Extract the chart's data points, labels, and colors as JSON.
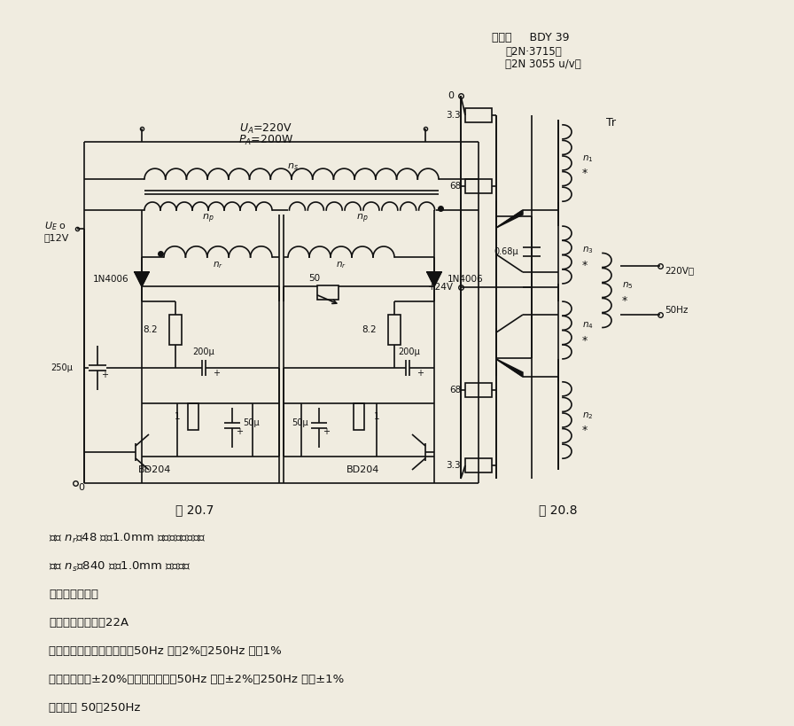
{
  "bg_color": "#f0ece0",
  "text_color": "#111111",
  "fig_label1": "图 20.7",
  "fig_label2": "图 20.8",
  "crystal_tube_label1": "晶体管     BDY 39",
  "crystal_tube_label2": "（2N·3715）",
  "crystal_tube_label3": "（2N 3055 u/v）",
  "text_lines": [
    "绕组 $n_r$＝48 匝，1.0mm 铜漆包线（双绕）",
    "绕组 $n_s$＝840 匝，1.0mm 铜漆包线",
    "电路典型数据：",
    "满载时消耗电流：22A",
    "空载和满载间频率变化量：50Hz 时＜2%，250Hz 时＜1%",
    "电源电压变化±20%时频率变化量：50Hz 时＜±2%，250Hz 时＜±1%",
    "工作频率 50～250Hz"
  ]
}
